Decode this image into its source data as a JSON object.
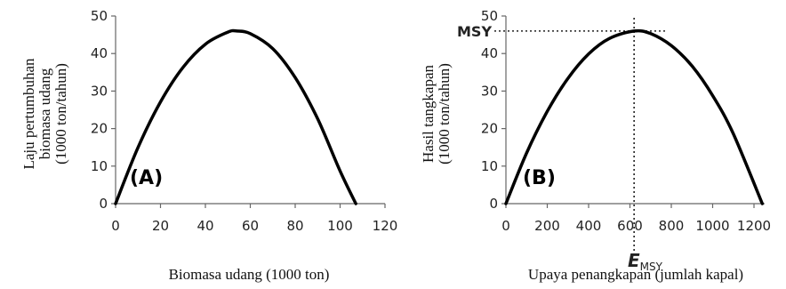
{
  "chart_data": [
    {
      "type": "line",
      "panel_label": "(A)",
      "xlabel": "Biomasa udang (1000 ton)",
      "ylabel_lines": [
        "Laju pertumbuhan",
        "biomasa udang",
        "(1000 ton/tahun)"
      ],
      "xticks": [
        "0",
        "20",
        "40",
        "60",
        "80",
        "100",
        "120"
      ],
      "yticks": [
        "0",
        "10",
        "20",
        "30",
        "40",
        "50"
      ],
      "xlim": [
        0,
        120
      ],
      "ylim": [
        0,
        50
      ],
      "series": [
        {
          "color": "#000000",
          "x": [
            0,
            10,
            20,
            30,
            40,
            50,
            54,
            60,
            70,
            80,
            90,
            100,
            107
          ],
          "y": [
            0,
            15.0,
            27.1,
            36.3,
            42.5,
            45.7,
            46,
            45.3,
            41.3,
            33.6,
            22.6,
            8.7,
            0
          ]
        }
      ]
    },
    {
      "type": "line",
      "panel_label": "(B)",
      "xlabel": "Upaya penangkapan (jumlah kapal)",
      "ylabel_lines": [
        "Hasil tangkapan",
        "(1000 ton/tahun)"
      ],
      "xticks": [
        "0",
        "200",
        "400",
        "600",
        "800",
        "1000",
        "1200"
      ],
      "yticks": [
        "0",
        "10",
        "20",
        "30",
        "40",
        "50"
      ],
      "xlim": [
        0,
        1300
      ],
      "ylim": [
        0,
        50
      ],
      "series": [
        {
          "color": "#000000",
          "x": [
            0,
            100,
            200,
            300,
            400,
            500,
            620,
            700,
            800,
            900,
            1000,
            1100,
            1240
          ],
          "y": [
            0,
            13.5,
            24.6,
            33.4,
            39.9,
            44.0,
            46,
            45.3,
            42.1,
            36.7,
            28.8,
            18.6,
            0
          ]
        }
      ],
      "annotations": {
        "msy_label": "MSY",
        "msy_value": 46,
        "emsy_label_main": "E",
        "emsy_label_sub": "MSY",
        "emsy_value": 620
      }
    }
  ]
}
